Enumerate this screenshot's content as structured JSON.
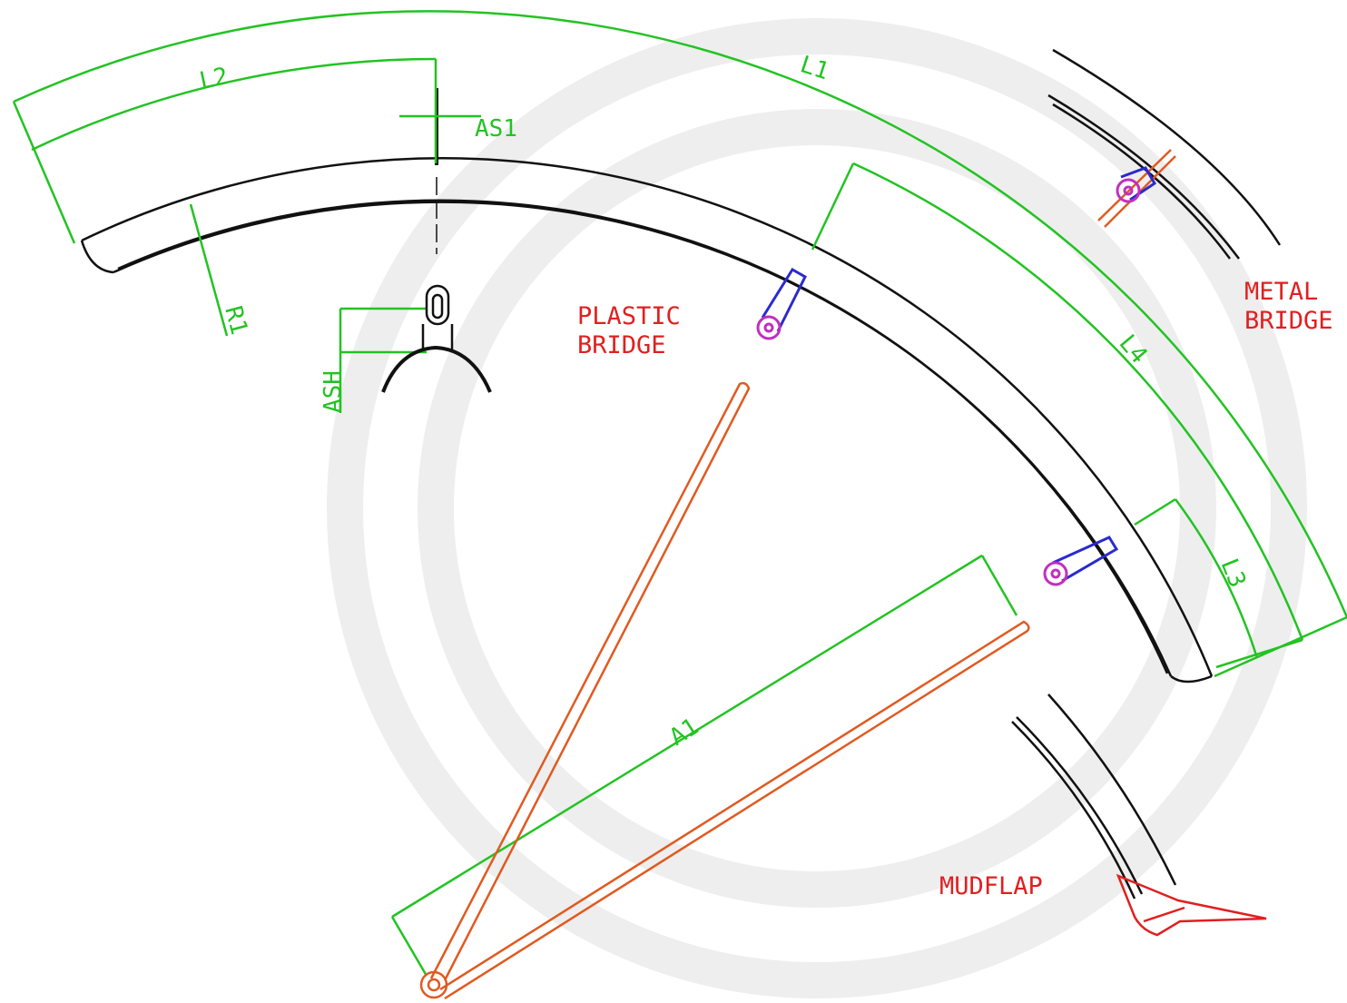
{
  "dimensions": [
    "L1",
    "L2",
    "L3",
    "L4",
    "AS1",
    "R1",
    "ASH",
    "A1"
  ],
  "callouts": [
    {
      "lines": [
        "PLASTIC",
        "BRIDGE"
      ]
    },
    {
      "lines": [
        "METAL",
        "BRIDGE"
      ]
    },
    {
      "lines": [
        "MUDFLAP"
      ]
    }
  ]
}
